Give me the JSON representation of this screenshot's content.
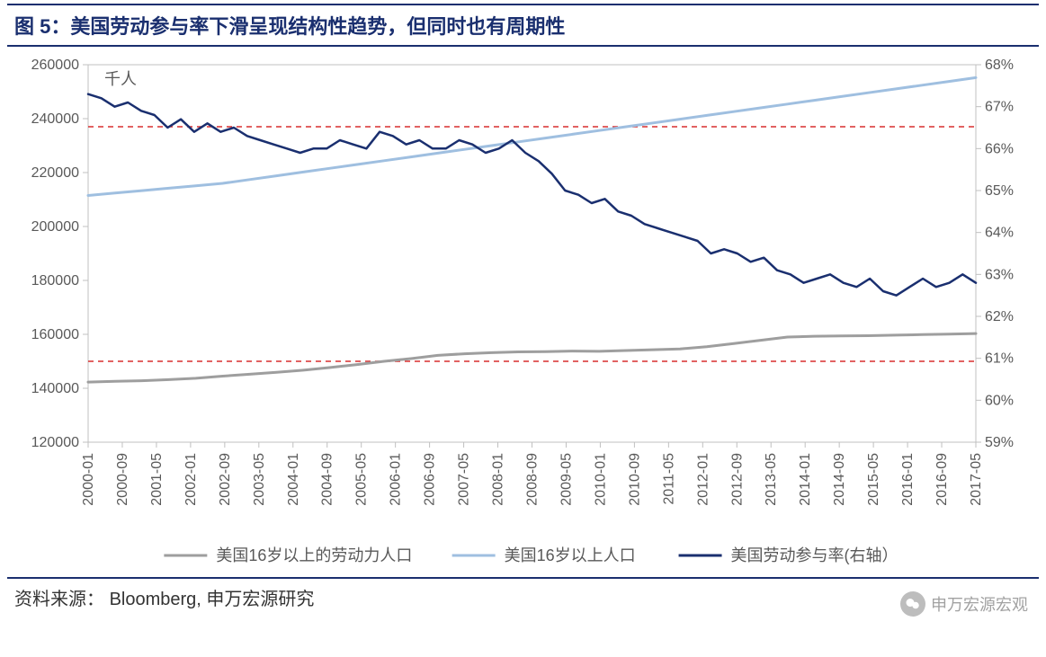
{
  "title_prefix": "图 5：",
  "title": "美国劳动参与率下滑呈现结构性趋势，但同时也有周期性",
  "source_label": "资料来源：",
  "source_text": "Bloomberg, 申万宏源研究",
  "watermark": "申万宏源宏观",
  "chart": {
    "type": "line-dual-axis",
    "background_color": "#ffffff",
    "axis_color": "#c0c0c0",
    "tick_font_size": 16,
    "tick_color": "#595959",
    "left_axis": {
      "min": 120000,
      "max": 260000,
      "step": 20000,
      "unit_label": "千人"
    },
    "right_axis": {
      "min": 59,
      "max": 68,
      "step": 1,
      "suffix": "%"
    },
    "x_labels": [
      "2000-01",
      "2000-09",
      "2001-05",
      "2002-01",
      "2002-09",
      "2003-05",
      "2004-01",
      "2004-09",
      "2005-05",
      "2006-01",
      "2006-09",
      "2007-05",
      "2008-01",
      "2008-09",
      "2009-05",
      "2010-01",
      "2010-09",
      "2011-05",
      "2012-01",
      "2012-09",
      "2013-05",
      "2014-01",
      "2014-09",
      "2015-05",
      "2016-01",
      "2016-09",
      "2017-05"
    ],
    "ref_lines": [
      {
        "axis": "left",
        "value": 237000,
        "color": "#d92f2f",
        "dash": "6,5",
        "width": 1.5
      },
      {
        "axis": "left",
        "value": 150000,
        "color": "#d92f2f",
        "dash": "6,5",
        "width": 1.5
      }
    ],
    "series": [
      {
        "name": "美国16岁以上的劳动力人口",
        "axis": "left",
        "color": "#9e9e9e",
        "width": 3,
        "values": [
          142300,
          142600,
          142800,
          143200,
          143700,
          144500,
          145200,
          145900,
          146700,
          147700,
          148800,
          150000,
          151000,
          152200,
          152800,
          153200,
          153500,
          153600,
          153800,
          153700,
          154000,
          154300,
          154600,
          155400,
          156600,
          157800,
          159000,
          159300,
          159400,
          159500,
          159700,
          159900,
          160100,
          160300
        ]
      },
      {
        "name": "美国16岁以上人口",
        "axis": "left",
        "color": "#9fbfe0",
        "width": 3,
        "values": [
          211500,
          212400,
          213300,
          214200,
          215100,
          216000,
          217400,
          218800,
          220200,
          221600,
          223000,
          224400,
          225800,
          227200,
          228600,
          230000,
          231400,
          232800,
          234200,
          235600,
          237000,
          238400,
          239800,
          241200,
          242600,
          244000,
          245400,
          246800,
          248200,
          249600,
          251000,
          252400,
          253800,
          255200
        ]
      },
      {
        "name": "美国劳动参与率(右轴）",
        "axis": "right",
        "color": "#1a2f6f",
        "width": 2.5,
        "values": [
          67.3,
          67.2,
          67.0,
          67.1,
          66.9,
          66.8,
          66.5,
          66.7,
          66.4,
          66.6,
          66.4,
          66.5,
          66.3,
          66.2,
          66.1,
          66.0,
          65.9,
          66.0,
          66.0,
          66.2,
          66.1,
          66.0,
          66.4,
          66.3,
          66.1,
          66.2,
          66.0,
          66.0,
          66.2,
          66.1,
          65.9,
          66.0,
          66.2,
          65.9,
          65.7,
          65.4,
          65.0,
          64.9,
          64.7,
          64.8,
          64.5,
          64.4,
          64.2,
          64.1,
          64.0,
          63.9,
          63.8,
          63.5,
          63.6,
          63.5,
          63.3,
          63.4,
          63.1,
          63.0,
          62.8,
          62.9,
          63.0,
          62.8,
          62.7,
          62.9,
          62.6,
          62.5,
          62.7,
          62.9,
          62.7,
          62.8,
          63.0,
          62.8
        ]
      }
    ],
    "legend": {
      "items": [
        "美国16岁以上的劳动力人口",
        "美国16岁以上人口",
        "美国劳动参与率(右轴）"
      ],
      "font_size": 18
    }
  }
}
